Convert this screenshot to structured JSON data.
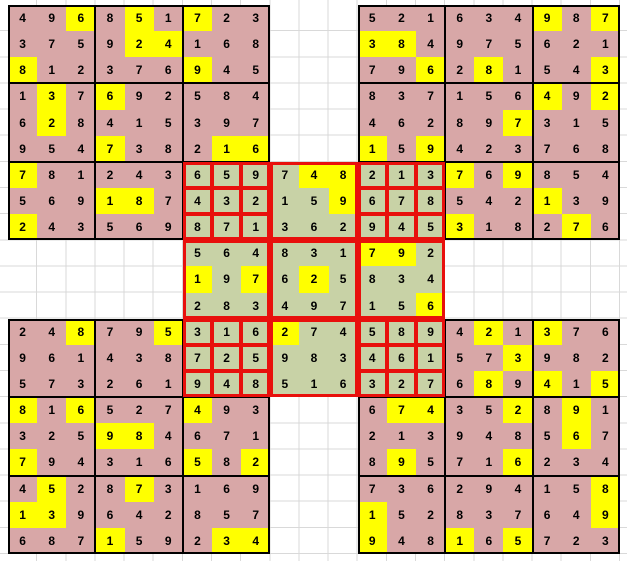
{
  "puzzle": {
    "type": "samurai-sudoku",
    "state": "solved",
    "board_cells": 21
  },
  "board": {
    "grids": [
      {
        "id": "top-left",
        "row": 0,
        "col": 0,
        "fill": "corner",
        "rows": [
          "496851723",
          "375924168",
          "812376945",
          "137692584",
          "628415397",
          "954738216",
          "781243659",
          "569187432",
          "243569871"
        ],
        "highlights": [
          [
            0,
            2
          ],
          [
            0,
            4
          ],
          [
            0,
            6
          ],
          [
            1,
            4
          ],
          [
            1,
            5
          ],
          [
            2,
            0
          ],
          [
            2,
            6
          ],
          [
            3,
            1
          ],
          [
            3,
            3
          ],
          [
            4,
            1
          ],
          [
            5,
            3
          ],
          [
            5,
            7
          ],
          [
            5,
            8
          ],
          [
            6,
            0
          ],
          [
            7,
            3
          ],
          [
            7,
            4
          ],
          [
            8,
            0
          ]
        ]
      },
      {
        "id": "top-right",
        "row": 0,
        "col": 12,
        "fill": "corner",
        "rows": [
          "521634987",
          "384975621",
          "796281543",
          "837156492",
          "462897315",
          "159423768",
          "213769854",
          "678542139",
          "945318276"
        ],
        "highlights": [
          [
            0,
            6
          ],
          [
            0,
            8
          ],
          [
            1,
            0
          ],
          [
            1,
            1
          ],
          [
            2,
            2
          ],
          [
            2,
            4
          ],
          [
            2,
            8
          ],
          [
            3,
            6
          ],
          [
            3,
            8
          ],
          [
            4,
            5
          ],
          [
            5,
            0
          ],
          [
            5,
            2
          ],
          [
            6,
            3
          ],
          [
            6,
            5
          ],
          [
            7,
            6
          ],
          [
            8,
            3
          ],
          [
            8,
            7
          ]
        ]
      },
      {
        "id": "center",
        "row": 6,
        "col": 6,
        "fill": "center",
        "rows": [
          "659748213",
          "432159678",
          "871362945",
          "564831792",
          "197625834",
          "283497156",
          "316274589",
          "725983461",
          "948516327"
        ],
        "highlights": [
          [
            0,
            4
          ],
          [
            0,
            5
          ],
          [
            1,
            5
          ],
          [
            3,
            6
          ],
          [
            3,
            7
          ],
          [
            4,
            0
          ],
          [
            4,
            2
          ],
          [
            4,
            4
          ],
          [
            5,
            8
          ],
          [
            6,
            3
          ]
        ]
      },
      {
        "id": "bottom-left",
        "row": 12,
        "col": 0,
        "fill": "corner",
        "rows": [
          "248795316",
          "961438725",
          "573261948",
          "816527493",
          "325984671",
          "794316582",
          "452873169",
          "139642857",
          "687159234"
        ],
        "highlights": [
          [
            0,
            2
          ],
          [
            0,
            5
          ],
          [
            3,
            0
          ],
          [
            3,
            2
          ],
          [
            3,
            6
          ],
          [
            4,
            3
          ],
          [
            4,
            4
          ],
          [
            5,
            0
          ],
          [
            5,
            6
          ],
          [
            5,
            8
          ],
          [
            6,
            1
          ],
          [
            6,
            4
          ],
          [
            7,
            0
          ],
          [
            7,
            1
          ],
          [
            8,
            3
          ],
          [
            8,
            7
          ],
          [
            8,
            8
          ]
        ]
      },
      {
        "id": "bottom-right",
        "row": 12,
        "col": 12,
        "fill": "corner",
        "rows": [
          "589421376",
          "461573982",
          "327689415",
          "674352891",
          "213948567",
          "895716234",
          "736294158",
          "152837649",
          "948165723"
        ],
        "highlights": [
          [
            0,
            4
          ],
          [
            0,
            6
          ],
          [
            1,
            5
          ],
          [
            2,
            4
          ],
          [
            2,
            6
          ],
          [
            2,
            8
          ],
          [
            3,
            1
          ],
          [
            3,
            2
          ],
          [
            3,
            5
          ],
          [
            3,
            7
          ],
          [
            4,
            7
          ],
          [
            5,
            1
          ],
          [
            5,
            5
          ],
          [
            6,
            8
          ],
          [
            7,
            0
          ],
          [
            7,
            8
          ],
          [
            8,
            0
          ],
          [
            8,
            3
          ],
          [
            8,
            5
          ]
        ]
      }
    ],
    "colors": {
      "background": "#ffffff",
      "sheet_line": "#d9d9d9",
      "corner_fill": "#d8a7a7",
      "center_fill": "#c8d2a6",
      "highlight": "#ffff00",
      "overlap_border": "#e8100c",
      "grid_border": "#000000",
      "digit": "#000000"
    }
  }
}
